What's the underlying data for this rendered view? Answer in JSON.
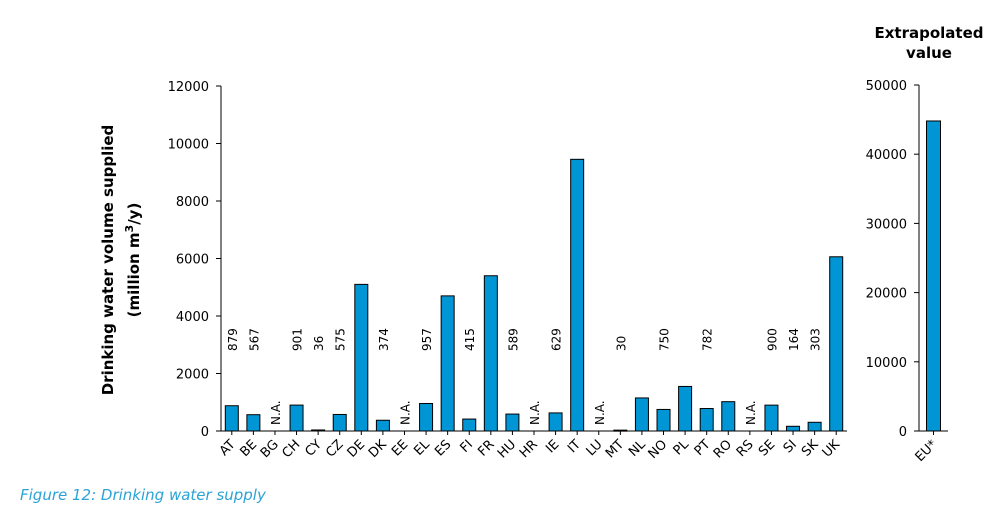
{
  "caption": "Figure 12: Drinking water supply",
  "colors": {
    "bar": "#0096d6",
    "bar_stroke": "#000000",
    "caption": "#2aa3d6"
  },
  "chart_data": [
    {
      "type": "bar",
      "ylabel_line1": "Drinking water volume supplied",
      "ylabel_line2_prefix": "(million m",
      "ylabel_line2_sup": "3",
      "ylabel_line2_suffix": "/y)",
      "ylim": [
        0,
        12000
      ],
      "yticks": [
        "0",
        "2000",
        "4000",
        "6000",
        "8000",
        "10000",
        "12000"
      ],
      "categories": [
        "AT",
        "BE",
        "BG",
        "CH",
        "CY",
        "CZ",
        "DE",
        "DK",
        "EE",
        "EL",
        "ES",
        "FI",
        "FR",
        "HU",
        "HR",
        "IE",
        "IT",
        "LU",
        "MT",
        "NL",
        "NO",
        "PL",
        "PT",
        "RO",
        "RS",
        "SE",
        "SI",
        "SK",
        "UK"
      ],
      "values": [
        879,
        567,
        null,
        901,
        36,
        575,
        5100,
        374,
        null,
        957,
        4700,
        415,
        5400,
        589,
        null,
        629,
        9450,
        null,
        30,
        1150,
        750,
        1550,
        782,
        1020,
        null,
        900,
        164,
        303,
        6060
      ],
      "data_labels": [
        "879",
        "567",
        "N.A.",
        "901",
        "36",
        "575",
        "",
        "374",
        "N.A.",
        "957",
        "",
        "415",
        "",
        "589",
        "N.A.",
        "629",
        "",
        "N.A.",
        "30",
        "",
        "750",
        "",
        "782",
        "",
        "N.A.",
        "900",
        "164",
        "303",
        ""
      ]
    },
    {
      "type": "bar",
      "title_line1": "Extrapolated",
      "title_line2": "value",
      "ylim": [
        0,
        50000
      ],
      "yticks": [
        "0",
        "10000",
        "20000",
        "30000",
        "40000",
        "50000"
      ],
      "categories": [
        "EU*"
      ],
      "values": [
        44800
      ]
    }
  ]
}
